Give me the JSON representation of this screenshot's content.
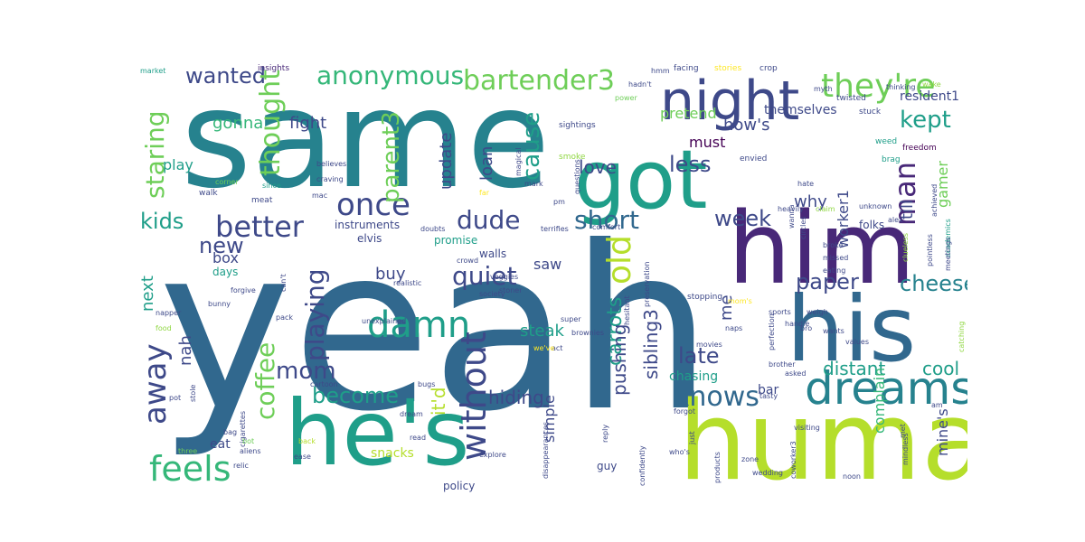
{
  "words": {
    "yeah": "yeah",
    "same": "same",
    "got": "got",
    "him": "him",
    "his": "his",
    "human": "human",
    "hes": "he's",
    "night": "night",
    "dreams": "dreams",
    "theyre": "they're",
    "anonymous": "anonymous",
    "bartender3": "bartender3",
    "better": "better",
    "once": "once",
    "thought": "thought",
    "damn": "damn",
    "old": "old",
    "without": "without",
    "feels": "feels",
    "man": "man",
    "dude": "dude",
    "short": "short",
    "knows": "knows",
    "away": "away",
    "coffee": "coffee",
    "mom": "mom",
    "become": "become",
    "quiet": "quiet",
    "parent3": "parent3",
    "playing": "playing",
    "staring": "staring",
    "kids": "kids",
    "wanted": "wanted",
    "cause": "cause",
    "less": "less",
    "week": "week",
    "kept": "kept",
    "new": "new",
    "paper": "paper",
    "cheese": "cheese",
    "late": "late",
    "distant": "distant",
    "cool": "cool",
    "hiding": "hiding",
    "love": "love",
    "gonna": "gonna",
    "fight": "fight",
    "pretend": "pretend",
    "hows": "how's",
    "must": "must",
    "play": "play",
    "update": "update",
    "loan": "loan",
    "buy": "buy",
    "steak": "steak",
    "carrots": "carrots",
    "pushing": "pushing",
    "sibling3": "sibling3",
    "me": "me",
    "why": "why",
    "till": "till",
    "worker1": "worker1",
    "gamer": "gamer",
    "themselves": "themselves",
    "resident1": "resident1",
    "box": "box",
    "next": "next",
    "nah": "nah",
    "itd": "it'd",
    "saw": "saw",
    "chasing": "chasing",
    "simple": "simple",
    "snacks": "snacks",
    "eat": "eat",
    "bar": "bar",
    "complain": "complain",
    "mines": "mine's",
    "elvis": "elvis",
    "instruments": "instruments",
    "days": "days",
    "promise": "promise",
    "walls": "walls",
    "guy": "guy",
    "policy": "policy",
    "folks": "folks",
    "market": "market",
    "insights": "insights",
    "hmm": "hmm",
    "facing": "facing",
    "stories": "stories",
    "crop": "crop",
    "hadnt": "hadn't",
    "power": "power",
    "myth": "myth",
    "twisted": "twisted",
    "wake": "wake",
    "sightings": "sightings",
    "stuck": "stuck",
    "weed": "weed",
    "freedom": "freedom",
    "brag": "brag",
    "smoke": "smoke",
    "envied": "envied",
    "questions": "questions",
    "magical": "magical",
    "mark": "mark",
    "far": "far",
    "pm": "pm",
    "terrifies": "terrifies",
    "claim": "claim",
    "unknown": "unknown",
    "hate": "hate",
    "heavily": "heavily",
    "alex": "alex",
    "academics": "academics",
    "achieved": "achieved",
    "walk": "walk",
    "corner": "corner",
    "since": "since",
    "believes": "believes",
    "craving": "craving",
    "meat": "meat",
    "mac": "mac",
    "doubts": "doubts",
    "comfort": "comfort",
    "wanna": "wanna",
    "circles": "circles",
    "broke": "broke",
    "missed": "missed",
    "eating": "eating",
    "clueless": "clueless",
    "pointless": "pointless",
    "meetings": "meetings",
    "crowd": "crowd",
    "veggies": "veggies",
    "stoner": "stoner",
    "society": "society",
    "realistic": "realistic",
    "forgive": "forgive",
    "bunny": "bunny",
    "napper": "napper",
    "cant": "can't",
    "pack": "pack",
    "food": "food",
    "super": "super",
    "act": "act",
    "unexplained": "unexplained",
    "brownies": "brownies",
    "weve": "we've",
    "hesitant": "hesitant",
    "naps": "naps",
    "movies": "movies",
    "stopping": "stopping",
    "moms": "mom's",
    "handle": "handle",
    "sports": "sports",
    "weigh": "weigh",
    "wants": "wants",
    "values": "values",
    "catching": "catching",
    "perfection": "perfection",
    "bro": "bro",
    "preservation": "preservation",
    "brother": "brother",
    "asked": "asked",
    "tasty": "tasty",
    "pot": "pot",
    "stole": "stole",
    "cigarettes": "cigarettes",
    "cartoon": "cartoon",
    "bugs": "bugs",
    "dream": "dream",
    "forgot": "forgot",
    "am": "am",
    "bag": "bag",
    "bot": "bot",
    "back": "back",
    "read": "read",
    "reply": "reply",
    "just": "just",
    "visiting": "visiting",
    "met": "met",
    "three": "three",
    "aliens": "aliens",
    "relic": "relic",
    "ease": "ease",
    "explore": "explore",
    "disappearances": "disappearances",
    "confidently": "confidently",
    "whos": "who's",
    "products": "products",
    "zone": "zone",
    "wedding": "wedding",
    "coworker3": "coworker3",
    "mindless": "mindless",
    "noon": "noon",
    "thinking": "thinking"
  },
  "palette": [
    "#31688e",
    "#26828e",
    "#1f9e89",
    "#35b779",
    "#6ece58",
    "#b5de2b",
    "#3e4989",
    "#482878",
    "#440154",
    "#fde725",
    "#90d743"
  ]
}
